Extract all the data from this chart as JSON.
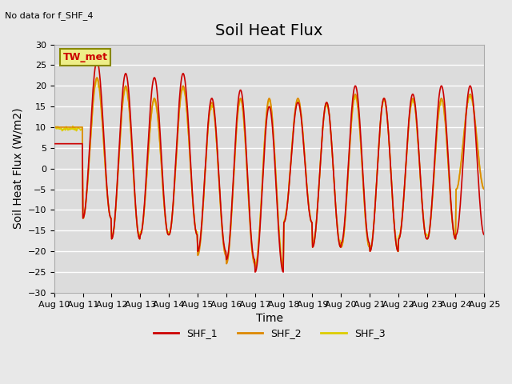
{
  "title": "Soil Heat Flux",
  "top_left_note": "No data for f_SHF_4",
  "ylabel": "Soil Heat Flux (W/m2)",
  "xlabel": "Time",
  "ylim": [
    -30,
    30
  ],
  "yticks": [
    -30,
    -25,
    -20,
    -15,
    -10,
    -5,
    0,
    5,
    10,
    15,
    20,
    25,
    30
  ],
  "xtick_labels": [
    "Aug 10",
    "Aug 11",
    "Aug 12",
    "Aug 13",
    "Aug 14",
    "Aug 15",
    "Aug 16",
    "Aug 17",
    "Aug 18",
    "Aug 19",
    "Aug 20",
    "Aug 21",
    "Aug 22",
    "Aug 23",
    "Aug 24",
    "Aug 25"
  ],
  "legend_entries": [
    "SHF_1",
    "SHF_2",
    "SHF_3"
  ],
  "legend_colors": [
    "#cc0000",
    "#dd8800",
    "#ddcc00"
  ],
  "legend_label": "TW_met",
  "legend_label_fgcolor": "#cc0000",
  "legend_label_bgcolor": "#eeee88",
  "background_color": "#e8e8e8",
  "plot_bg_color": "#dcdcdc",
  "grid_color": "#ffffff",
  "shf1_color": "#cc0000",
  "shf2_color": "#dd8800",
  "shf3_color": "#ddcc00",
  "title_fontsize": 14,
  "axis_label_fontsize": 10,
  "tick_fontsize": 8
}
